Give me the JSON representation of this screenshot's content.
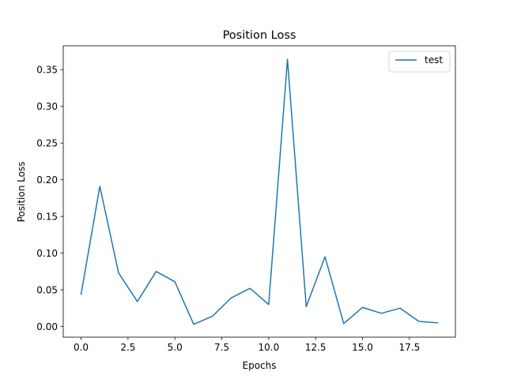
{
  "chart_data": {
    "type": "line",
    "title": "Position Loss",
    "xlabel": "Epochs",
    "ylabel": "Position Loss",
    "xlim": [
      -0.95,
      19.95
    ],
    "ylim": [
      -0.0145,
      0.3825
    ],
    "x_ticks": [
      0.0,
      2.5,
      5.0,
      7.5,
      10.0,
      12.5,
      15.0,
      17.5
    ],
    "x_tick_labels": [
      "0.0",
      "2.5",
      "5.0",
      "7.5",
      "10.0",
      "12.5",
      "15.0",
      "17.5"
    ],
    "y_ticks": [
      0.0,
      0.05,
      0.1,
      0.15,
      0.2,
      0.25,
      0.3,
      0.35
    ],
    "y_tick_labels": [
      "0.00",
      "0.05",
      "0.10",
      "0.15",
      "0.20",
      "0.25",
      "0.30",
      "0.35"
    ],
    "grid": false,
    "legend_position": "top-right",
    "series": [
      {
        "name": "test",
        "color": "#1f77b4",
        "x": [
          0,
          1,
          2,
          3,
          4,
          5,
          6,
          7,
          8,
          9,
          10,
          11,
          12,
          13,
          14,
          15,
          16,
          17,
          18,
          19
        ],
        "y": [
          0.044,
          0.191,
          0.073,
          0.034,
          0.075,
          0.061,
          0.003,
          0.014,
          0.039,
          0.052,
          0.03,
          0.364,
          0.027,
          0.095,
          0.004,
          0.026,
          0.018,
          0.025,
          0.007,
          0.005
        ]
      }
    ]
  }
}
